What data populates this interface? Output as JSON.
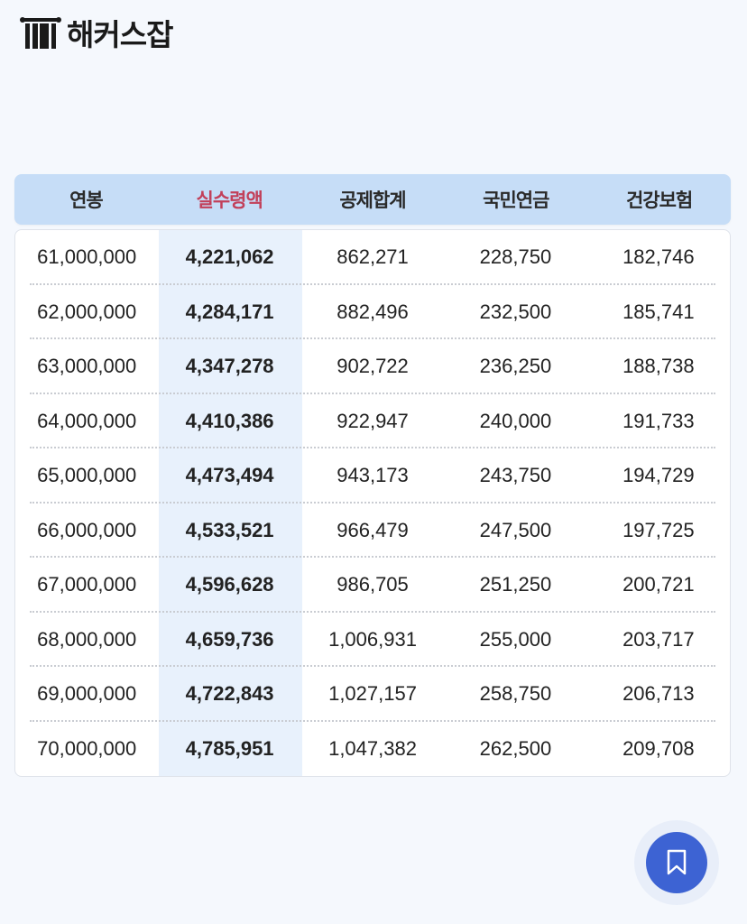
{
  "header": {
    "logo_text": "해커스잡"
  },
  "table": {
    "columns": [
      "연봉",
      "실수령액",
      "공제합계",
      "국민연금",
      "건강보험"
    ],
    "rows": [
      [
        "61,000,000",
        "4,221,062",
        "862,271",
        "228,750",
        "182,746"
      ],
      [
        "62,000,000",
        "4,284,171",
        "882,496",
        "232,500",
        "185,741"
      ],
      [
        "63,000,000",
        "4,347,278",
        "902,722",
        "236,250",
        "188,738"
      ],
      [
        "64,000,000",
        "4,410,386",
        "922,947",
        "240,000",
        "191,733"
      ],
      [
        "65,000,000",
        "4,473,494",
        "943,173",
        "243,750",
        "194,729"
      ],
      [
        "66,000,000",
        "4,533,521",
        "966,479",
        "247,500",
        "197,725"
      ],
      [
        "67,000,000",
        "4,596,628",
        "986,705",
        "251,250",
        "200,721"
      ],
      [
        "68,000,000",
        "4,659,736",
        "1,006,931",
        "255,000",
        "203,717"
      ],
      [
        "69,000,000",
        "4,722,843",
        "1,027,157",
        "258,750",
        "206,713"
      ],
      [
        "70,000,000",
        "4,785,951",
        "1,047,382",
        "262,500",
        "209,708"
      ]
    ]
  },
  "fab": {
    "icon": "bookmark-icon"
  },
  "colors": {
    "accent": "#3d63d3",
    "highlight_text": "#c2405a",
    "header_bg": "#c6ddf7",
    "highlight_col": "#e8f1fc"
  }
}
